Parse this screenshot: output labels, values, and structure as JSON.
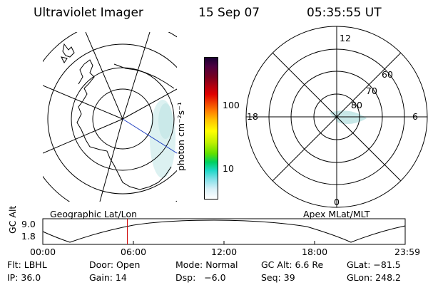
{
  "header": {
    "instrument": "Ultraviolet Imager",
    "date": "15 Sep 07",
    "time": "05:35:55 UT"
  },
  "geo_map": {
    "label": "Geographic Lat/Lon"
  },
  "colorbar": {
    "unit": "photon cm⁻²s⁻¹",
    "tick_labels": [
      "100",
      "10"
    ],
    "colors_top_to_bottom": [
      "#1a0033",
      "#4b0040",
      "#7a0020",
      "#b00010",
      "#e00000",
      "#f04000",
      "#ff8000",
      "#ffc000",
      "#ffff00",
      "#c0f000",
      "#60e000",
      "#00d060",
      "#20d8c8",
      "#80e0e8",
      "#d8f0f8",
      "#ffffff"
    ]
  },
  "polar_plot": {
    "label": "Apex MLat/MLT",
    "mlt_labels": {
      "top": "12",
      "left": "18",
      "right": "6",
      "bottom": "0"
    },
    "lat_labels": [
      "60",
      "70",
      "80"
    ]
  },
  "altitude_plot": {
    "y_title": "GC Alt",
    "y_ticks": [
      "9.0",
      "1.8"
    ],
    "x_ticks": [
      "00:00",
      "06:00",
      "12:00",
      "18:00",
      "23:59"
    ],
    "current_time_hours": 5.6,
    "marker_color": "#cc0000"
  },
  "info": {
    "row1": {
      "flt": "Flt: LBHL",
      "door": "Door: Open",
      "mode": "Mode: Normal",
      "gc_alt": "GC Alt: 6.6 Re",
      "glat": "GLat: −81.5"
    },
    "row2": {
      "ip": "IP: 36.0",
      "gain": "Gain: 14",
      "dsp": "Dsp:   −6.0",
      "seq": "Seq: 39",
      "glon": "GLon: 248.2"
    }
  }
}
